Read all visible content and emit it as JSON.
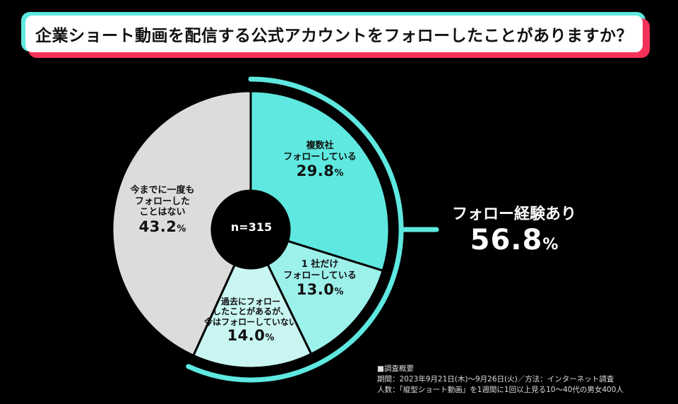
{
  "title": "企業ショート動画を配信する公式アカウントをフォローしたことがありますか？",
  "chart_data": {
    "type": "pie",
    "sample_label": "n=315",
    "slices": [
      {
        "label_lines": [
          "複数社",
          "フォローしている"
        ],
        "value": 29.8,
        "value_text": "29.8",
        "unit": "%",
        "color": "#5ee8e0"
      },
      {
        "label_lines": [
          "1 社だけ",
          "フォローしている"
        ],
        "value": 13.0,
        "value_text": "13.0",
        "unit": "%",
        "color": "#9df1eb"
      },
      {
        "label_lines": [
          "過去にフォロー",
          "したことがあるが、",
          "今はフォローしていない"
        ],
        "value": 14.0,
        "value_text": "14.0",
        "unit": "%",
        "color": "#c9f6f2"
      },
      {
        "label_lines": [
          "今までに一度も",
          "フォローした",
          "ことはない"
        ],
        "value": 43.2,
        "value_text": "43.2",
        "unit": "%",
        "color": "#dcdcdc"
      }
    ],
    "summary": {
      "label": "フォロー経験あり",
      "value": 56.8,
      "value_text": "56.8",
      "unit": "%",
      "accent": "#5ee8e0"
    }
  },
  "notes": {
    "heading": "■調査概要",
    "period": "期間：2023年9月21日(木)〜9月26日(火)／方法：インターネット調査",
    "people": "人数：「縦型ショート動画」を1週間に1回以上見る10〜40代の男女400人"
  }
}
